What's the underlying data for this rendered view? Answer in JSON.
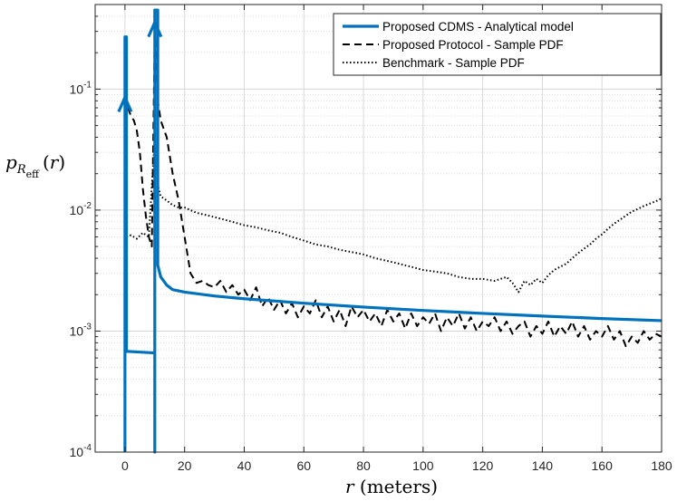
{
  "chart_data": {
    "type": "line",
    "xlabel": "r (meters)",
    "ylabel": "p_R_eff (r)",
    "xlim": [
      -10,
      180
    ],
    "ylim": [
      0.0001,
      0.5
    ],
    "yscale": "log",
    "grid": true,
    "minor_grid": true,
    "legend_position": "top-right",
    "x_ticks": [
      0,
      20,
      40,
      60,
      80,
      100,
      120,
      140,
      160,
      180
    ],
    "x_tick_labels": [
      "0",
      "20",
      "40",
      "60",
      "80",
      "100",
      "120",
      "140",
      "160",
      "180"
    ],
    "y_ticks": [
      0.0001,
      0.001,
      0.01,
      0.1
    ],
    "y_tick_labels": [
      {
        "base": "10",
        "exp": "-4"
      },
      {
        "base": "10",
        "exp": "-3"
      },
      {
        "base": "10",
        "exp": "-2"
      },
      {
        "base": "10",
        "exp": "-1"
      }
    ],
    "series": [
      {
        "name": "Proposed CDMS - Analytical model",
        "style": "solid",
        "color": "#0072BD",
        "points": [
          [
            0,
            0.0001
          ],
          [
            0,
            0.27
          ],
          [
            0.5,
            0.27
          ],
          [
            0.5,
            0.00068
          ],
          [
            10,
            0.00066
          ],
          [
            10,
            0.0001
          ],
          [
            10,
            0.45
          ],
          [
            11,
            0.45
          ],
          [
            11,
            0.0035
          ],
          [
            12,
            0.0028
          ],
          [
            14,
            0.0024
          ],
          [
            16,
            0.0022
          ],
          [
            20,
            0.0021
          ],
          [
            30,
            0.00195
          ],
          [
            40,
            0.00185
          ],
          [
            60,
            0.0017
          ],
          [
            80,
            0.00158
          ],
          [
            100,
            0.00148
          ],
          [
            120,
            0.0014
          ],
          [
            140,
            0.00133
          ],
          [
            160,
            0.00127
          ],
          [
            180,
            0.00122
          ]
        ],
        "arrows": [
          {
            "x": 0,
            "y": 0.072
          },
          {
            "x": 10,
            "y": 0.3
          }
        ]
      },
      {
        "name": "Proposed Protocol - Sample PDF",
        "style": "dashed",
        "color": "#000000",
        "points": [
          [
            1,
            0.07
          ],
          [
            2,
            0.06
          ],
          [
            3,
            0.055
          ],
          [
            4,
            0.045
          ],
          [
            5,
            0.03
          ],
          [
            6,
            0.015
          ],
          [
            7,
            0.009
          ],
          [
            8,
            0.006
          ],
          [
            9,
            0.005
          ],
          [
            10,
            0.3
          ],
          [
            11,
            0.08
          ],
          [
            12,
            0.055
          ],
          [
            14,
            0.04
          ],
          [
            16,
            0.02
          ],
          [
            18,
            0.012
          ],
          [
            20,
            0.006
          ],
          [
            22,
            0.003
          ],
          [
            24,
            0.0025
          ],
          [
            26,
            0.0026
          ],
          [
            28,
            0.0024
          ],
          [
            30,
            0.0023
          ],
          [
            32,
            0.0026
          ],
          [
            34,
            0.0021
          ],
          [
            36,
            0.0024
          ],
          [
            38,
            0.002
          ],
          [
            40,
            0.0022
          ],
          [
            42,
            0.0018
          ],
          [
            44,
            0.0023
          ],
          [
            46,
            0.0016
          ],
          [
            48,
            0.0019
          ],
          [
            50,
            0.0015
          ],
          [
            52,
            0.0018
          ],
          [
            54,
            0.0014
          ],
          [
            56,
            0.0017
          ],
          [
            58,
            0.0013
          ],
          [
            60,
            0.0016
          ],
          [
            62,
            0.0014
          ],
          [
            64,
            0.0018
          ],
          [
            66,
            0.0013
          ],
          [
            68,
            0.0016
          ],
          [
            70,
            0.0012
          ],
          [
            72,
            0.0015
          ],
          [
            74,
            0.0011
          ],
          [
            76,
            0.0016
          ],
          [
            78,
            0.0013
          ],
          [
            80,
            0.0015
          ],
          [
            82,
            0.0012
          ],
          [
            84,
            0.0014
          ],
          [
            86,
            0.0011
          ],
          [
            88,
            0.0015
          ],
          [
            90,
            0.0012
          ],
          [
            92,
            0.0014
          ],
          [
            94,
            0.00105
          ],
          [
            96,
            0.0014
          ],
          [
            98,
            0.0011
          ],
          [
            100,
            0.0013
          ],
          [
            102,
            0.00115
          ],
          [
            104,
            0.0014
          ],
          [
            106,
            0.001
          ],
          [
            108,
            0.0013
          ],
          [
            110,
            0.0011
          ],
          [
            112,
            0.0014
          ],
          [
            114,
            0.00105
          ],
          [
            116,
            0.0013
          ],
          [
            118,
            0.001
          ],
          [
            120,
            0.0012
          ],
          [
            122,
            0.0011
          ],
          [
            124,
            0.0013
          ],
          [
            126,
            0.001
          ],
          [
            128,
            0.0012
          ],
          [
            130,
            0.00095
          ],
          [
            132,
            0.0011
          ],
          [
            134,
            0.0012
          ],
          [
            136,
            0.0009
          ],
          [
            138,
            0.0011
          ],
          [
            140,
            0.00095
          ],
          [
            142,
            0.0012
          ],
          [
            144,
            0.0009
          ],
          [
            146,
            0.0011
          ],
          [
            148,
            0.00095
          ],
          [
            150,
            0.0012
          ],
          [
            152,
            0.0009
          ],
          [
            154,
            0.0011
          ],
          [
            156,
            0.00085
          ],
          [
            158,
            0.001
          ],
          [
            160,
            0.0009
          ],
          [
            162,
            0.0011
          ],
          [
            164,
            0.00085
          ],
          [
            166,
            0.001
          ],
          [
            168,
            0.00075
          ],
          [
            170,
            0.0009
          ],
          [
            172,
            0.0008
          ],
          [
            174,
            0.001
          ],
          [
            176,
            0.00085
          ],
          [
            178,
            0.00095
          ],
          [
            180,
            0.0009
          ]
        ]
      },
      {
        "name": "Benchmark - Sample PDF",
        "style": "dotted",
        "color": "#000000",
        "points": [
          [
            0.5,
            0.006
          ],
          [
            2,
            0.0062
          ],
          [
            4,
            0.0058
          ],
          [
            6,
            0.0065
          ],
          [
            8,
            0.006
          ],
          [
            10,
            0.04
          ],
          [
            11,
            0.016
          ],
          [
            12,
            0.013
          ],
          [
            14,
            0.012
          ],
          [
            16,
            0.011
          ],
          [
            18,
            0.0105
          ],
          [
            20,
            0.0105
          ],
          [
            24,
            0.0095
          ],
          [
            28,
            0.009
          ],
          [
            32,
            0.0085
          ],
          [
            36,
            0.008
          ],
          [
            40,
            0.0075
          ],
          [
            44,
            0.0072
          ],
          [
            48,
            0.0068
          ],
          [
            52,
            0.0065
          ],
          [
            56,
            0.006
          ],
          [
            60,
            0.0056
          ],
          [
            64,
            0.0052
          ],
          [
            68,
            0.005
          ],
          [
            72,
            0.0047
          ],
          [
            76,
            0.0045
          ],
          [
            80,
            0.0043
          ],
          [
            84,
            0.004
          ],
          [
            88,
            0.0038
          ],
          [
            92,
            0.0036
          ],
          [
            96,
            0.0034
          ],
          [
            100,
            0.0032
          ],
          [
            104,
            0.0031
          ],
          [
            108,
            0.003
          ],
          [
            112,
            0.0028
          ],
          [
            116,
            0.0027
          ],
          [
            120,
            0.0027
          ],
          [
            124,
            0.0026
          ],
          [
            128,
            0.0028
          ],
          [
            130,
            0.0025
          ],
          [
            132,
            0.0021
          ],
          [
            134,
            0.0026
          ],
          [
            136,
            0.0024
          ],
          [
            138,
            0.0027
          ],
          [
            140,
            0.0025
          ],
          [
            142,
            0.0029
          ],
          [
            144,
            0.0032
          ],
          [
            146,
            0.0034
          ],
          [
            148,
            0.0036
          ],
          [
            150,
            0.004
          ],
          [
            152,
            0.0044
          ],
          [
            154,
            0.0048
          ],
          [
            156,
            0.0052
          ],
          [
            158,
            0.0058
          ],
          [
            160,
            0.0063
          ],
          [
            162,
            0.007
          ],
          [
            164,
            0.0077
          ],
          [
            166,
            0.0083
          ],
          [
            168,
            0.009
          ],
          [
            170,
            0.0097
          ],
          [
            172,
            0.0102
          ],
          [
            174,
            0.0108
          ],
          [
            176,
            0.0113
          ],
          [
            178,
            0.0118
          ],
          [
            180,
            0.0125
          ]
        ]
      }
    ]
  }
}
